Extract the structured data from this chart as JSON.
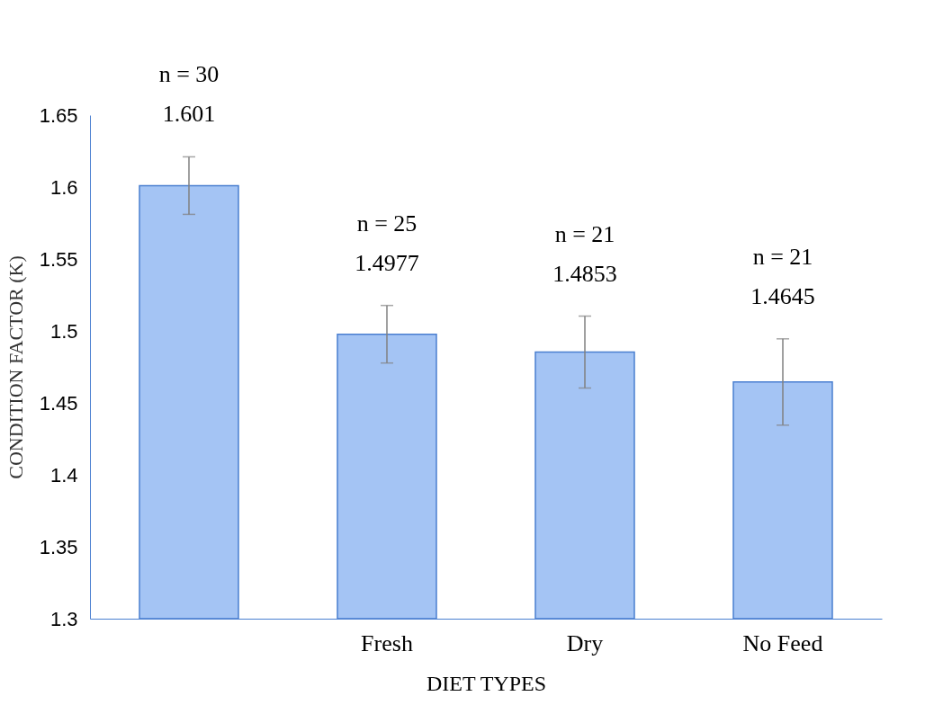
{
  "chart_data": {
    "type": "bar",
    "xlabel": "DIET TYPES",
    "ylabel": "CONDITION FACTOR (K)",
    "categories": [
      null,
      "Fresh",
      "Dry",
      "No Feed"
    ],
    "values": [
      1.601,
      1.4977,
      1.4853,
      1.4645
    ],
    "errors": [
      0.02,
      0.02,
      0.025,
      0.03
    ],
    "color": "#a4c4f4",
    "ylim": [
      1.3,
      1.65
    ],
    "yticks": [
      1.3,
      1.35,
      1.4,
      1.45,
      1.5,
      1.55,
      1.6,
      1.65
    ],
    "data_labels": true,
    "annotations": [
      "n = 30",
      "n = 25",
      "n = 21",
      "n = 21"
    ],
    "grid": false
  }
}
